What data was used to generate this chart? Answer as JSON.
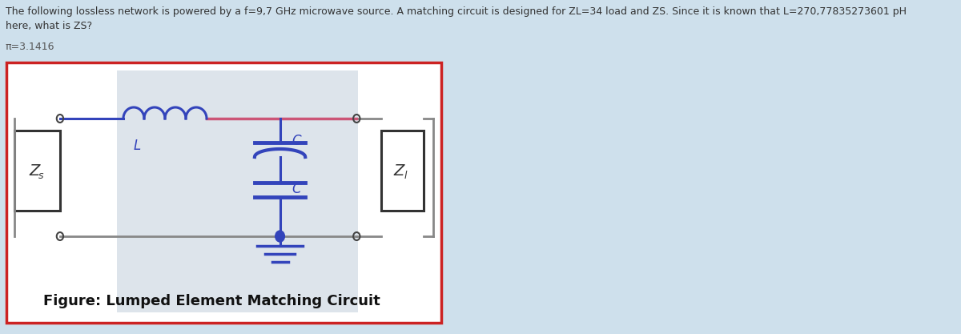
{
  "title_line1": "The following lossless network is powered by a f=9,7 GHz microwave source. A matching circuit is designed for ZL=34 load and ZS. Since it is known that L=270,77835273601 pH",
  "title_line2": "here, what is ZS?",
  "pi_text": "π=3.1416",
  "figure_caption": "Figure: Lumped Element Matching Circuit",
  "bg_color": "#cee0ec",
  "outer_bg": "#ffffff",
  "circuit_bg": "#d8e0e8",
  "box_border": "#cc2222",
  "title_fontsize": 9.0,
  "caption_fontsize": 13,
  "wire_color_gray": "#888888",
  "wire_color_blue": "#3344bb",
  "wire_color_pink": "#cc5577",
  "inductor_color": "#3344bb",
  "capacitor_color": "#3344bb",
  "label_L": "L",
  "label_C_top": "C",
  "label_C_bot": "C",
  "label_ZS": "Z",
  "label_ZS_sub": "s",
  "label_ZL": "Z",
  "label_ZL_sub": "l"
}
